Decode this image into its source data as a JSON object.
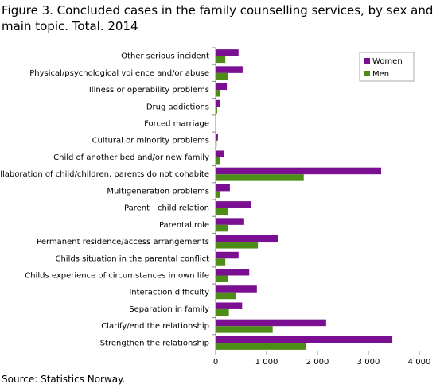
{
  "chart_data": {
    "type": "hbar",
    "title": "Figure 3. Concluded cases  in the family counselling services, by sex and main topic. Total. 2014",
    "source": "Source: Statistics Norway.",
    "categories": [
      "Other serious incident",
      "Physical/psychological voilence and/or abuse",
      "Illness or operability problems",
      "Drug addictions",
      "Forced marriage",
      "Cultural or minority problems",
      "Child of another bed and/or new family",
      "Collaboration of child/children, parents do not cohabite",
      "Multigeneration problems",
      "Parent - child relation",
      "Parental role",
      "Permanent residence/access arrangements",
      "Childs situation in the parental conflict",
      "Childs experience of circumstances in own life",
      "Interaction difficulty",
      "Separation in family",
      "Clarify/end the relationship",
      "Strengthen the relationship"
    ],
    "series": [
      {
        "name": "Women",
        "color": "#7b0f91",
        "values": [
          450,
          530,
          220,
          80,
          15,
          45,
          170,
          3250,
          280,
          690,
          560,
          1220,
          450,
          660,
          810,
          520,
          2170,
          3470
        ]
      },
      {
        "name": "Men",
        "color": "#4d8c16",
        "values": [
          190,
          250,
          90,
          30,
          5,
          20,
          80,
          1730,
          80,
          240,
          250,
          830,
          190,
          240,
          400,
          260,
          1120,
          1780
        ]
      }
    ],
    "xlim": [
      0,
      4000
    ],
    "xticks": [
      0,
      {
        "value": 1000,
        "label": "1 000"
      },
      {
        "value": 2000,
        "label": "2 000"
      },
      {
        "value": 3000,
        "label": "3 000"
      },
      {
        "value": 4000,
        "label": "4 000"
      }
    ],
    "legend": "top-right"
  }
}
